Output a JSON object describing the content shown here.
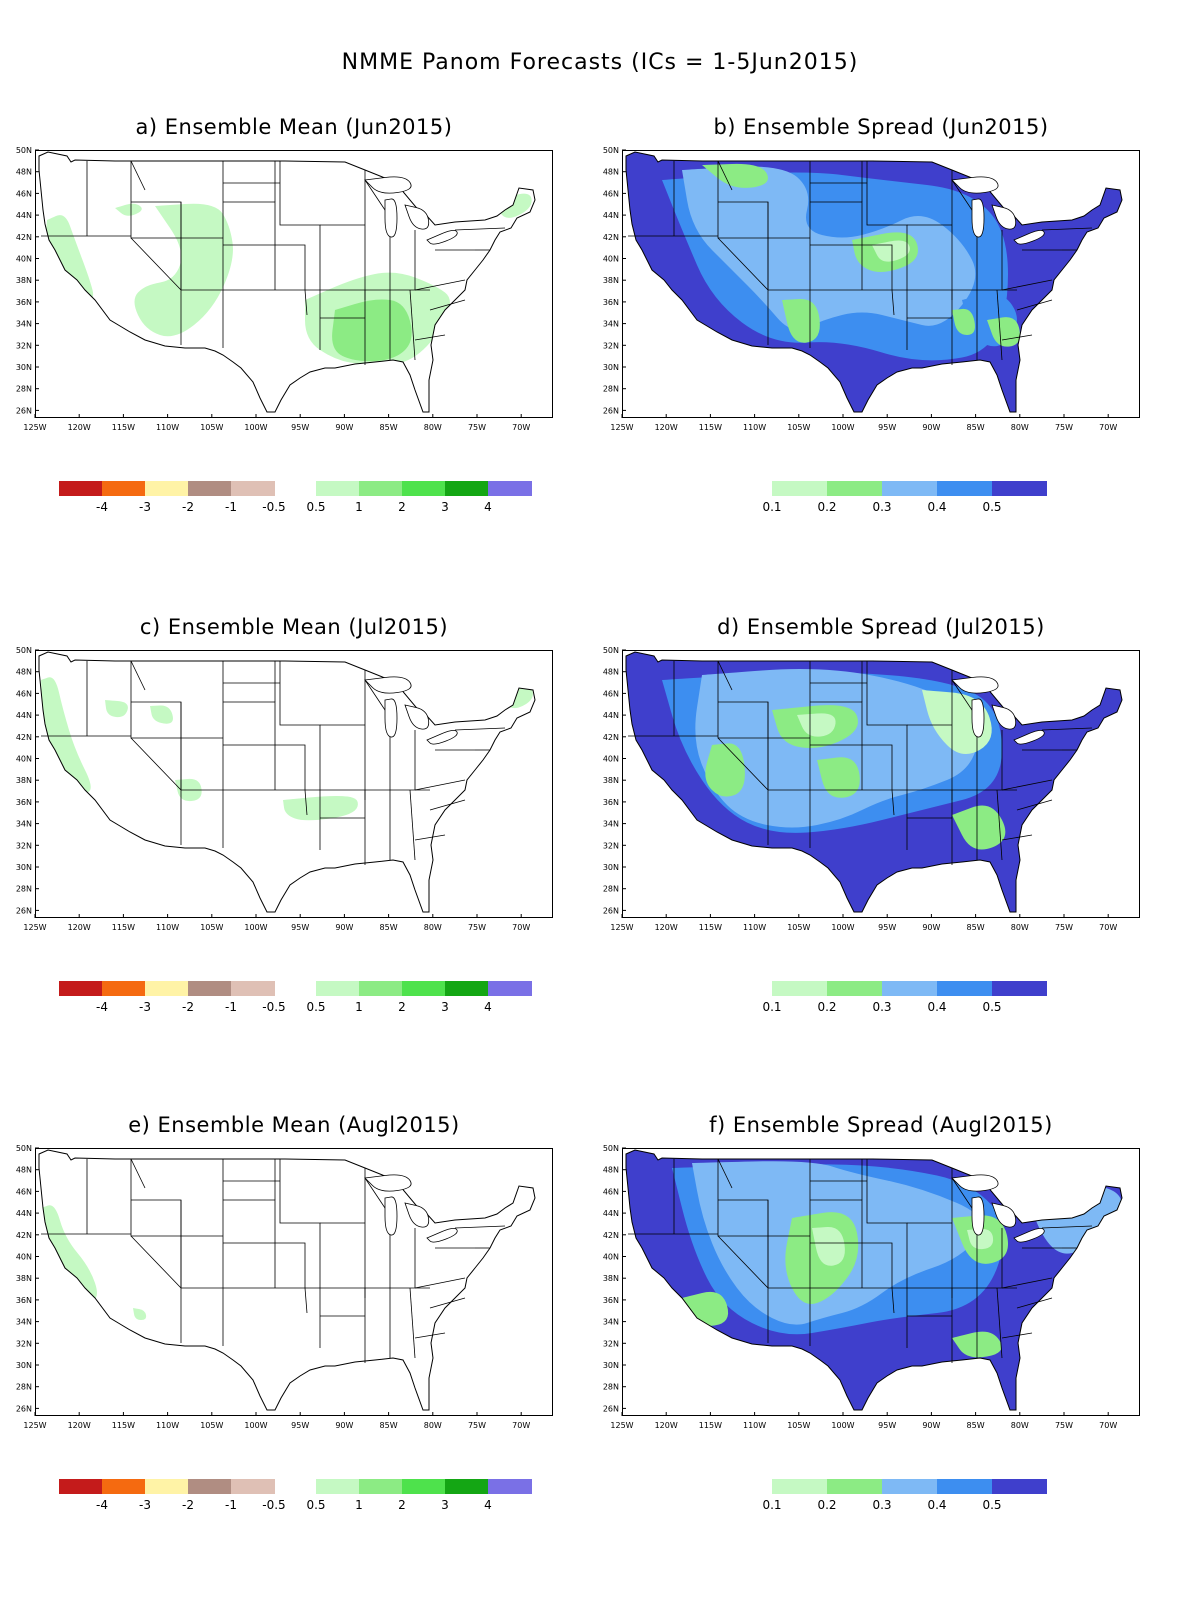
{
  "title": "NMME Panom Forecasts (ICs = 1-5Jun2015)",
  "axes": {
    "lat_ticks": [
      "50N",
      "48N",
      "46N",
      "44N",
      "42N",
      "40N",
      "38N",
      "36N",
      "34N",
      "32N",
      "30N",
      "28N",
      "26N"
    ],
    "lon_ticks": [
      "125W",
      "120W",
      "115W",
      "110W",
      "105W",
      "100W",
      "95W",
      "90W",
      "85W",
      "80W",
      "75W",
      "70W"
    ]
  },
  "colorbars": {
    "mean": {
      "neg_colors": [
        "#c41b1b",
        "#f56a10",
        "#fff3a6",
        "#b08d82",
        "#dfc0b5"
      ],
      "pos_colors": [
        "#c5f9c3",
        "#8ceb84",
        "#4ee24c",
        "#14a614",
        "#7a70e6"
      ],
      "neg_labels": [
        "-4",
        "-3",
        "-2",
        "-1",
        "-0.5"
      ],
      "pos_labels": [
        "0.5",
        "1",
        "2",
        "3",
        "4"
      ]
    },
    "spread": {
      "colors": [
        "#c5f9c3",
        "#8ceb84",
        "#7eb9f5",
        "#3d8ef0",
        "#3f3fcc"
      ],
      "labels": [
        "0.1",
        "0.2",
        "0.3",
        "0.4",
        "0.5"
      ]
    }
  },
  "panels": [
    {
      "title": "a) Ensemble Mean (Jun2015)",
      "kind": "mean"
    },
    {
      "title": "b) Ensemble Spread (Jun2015)",
      "kind": "spread"
    },
    {
      "title": "c) Ensemble Mean (Jul2015)",
      "kind": "mean"
    },
    {
      "title": "d) Ensemble Spread (Jul2015)",
      "kind": "spread"
    },
    {
      "title": "e) Ensemble Mean (Augl2015)",
      "kind": "mean"
    },
    {
      "title": "f) Ensemble Spread (Augl2015)",
      "kind": "spread"
    }
  ]
}
